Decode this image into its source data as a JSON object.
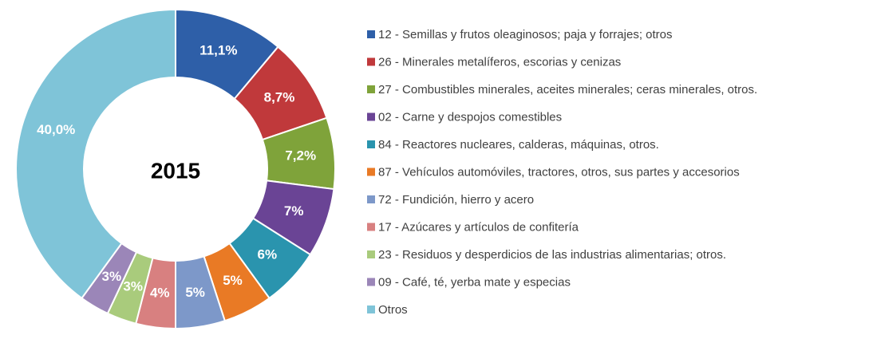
{
  "chart_data": {
    "type": "pie",
    "donut": true,
    "center_label": "2015",
    "categories": [
      "12 - Semillas y frutos oleaginosos;  paja y forrajes; otros",
      "26 - Minerales metalíferos, escorias y cenizas",
      "27 - Combustibles minerales, aceites minerales; ceras minerales, otros.",
      "02 - Carne y despojos comestibles",
      "84 - Reactores nucleares, calderas, máquinas, otros.",
      "87 - Vehículos automóviles, tractores, otros, sus partes y accesorios",
      "72 - Fundición, hierro y acero",
      "17 - Azúcares y artículos de confitería",
      "23 - Residuos y desperdicios de las industrias alimentarias; otros.",
      "09 - Café, té, yerba mate y especias",
      "Otros"
    ],
    "values": [
      11.1,
      8.7,
      7.2,
      7,
      6,
      5,
      5,
      4,
      3,
      3,
      40
    ],
    "value_labels": [
      "11,1%",
      "8,7%",
      "7,2%",
      "7%",
      "6%",
      "5%",
      "5%",
      "4%",
      "3%",
      "3%",
      "40,0%"
    ],
    "colors": [
      "#2e5fa8",
      "#c0393b",
      "#7fa33a",
      "#6a4495",
      "#2a94ae",
      "#e97a25",
      "#7d98c9",
      "#d88080",
      "#a9cb7c",
      "#9b86b8",
      "#7fc4d8"
    ],
    "legend": "right"
  }
}
